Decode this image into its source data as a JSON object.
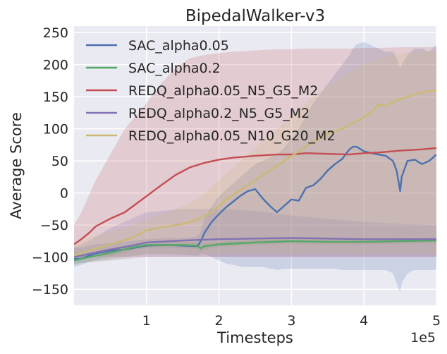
{
  "chart_data": {
    "type": "line",
    "title": "BipedalWalker-v3",
    "xlabel": "Timesteps",
    "ylabel": "Average Score",
    "x_scale_label": "1e5",
    "xlim": [
      0,
      5
    ],
    "ylim": [
      -175,
      260
    ],
    "x_ticks": [
      1,
      2,
      3,
      4,
      5
    ],
    "x_tick_labels": [
      "1",
      "2",
      "3",
      "4",
      "5"
    ],
    "y_ticks": [
      -150,
      -100,
      -50,
      0,
      50,
      100,
      150,
      200,
      250
    ],
    "y_tick_labels": [
      "−150",
      "−100",
      "−50",
      "0",
      "50",
      "100",
      "150",
      "200",
      "250"
    ],
    "grid": true,
    "legend_position": "top-left",
    "series": [
      {
        "name": "SAC_alpha0.05",
        "color": "#4c72b0",
        "x": [
          0,
          0.1,
          0.2,
          0.3,
          0.5,
          0.7,
          1.0,
          1.3,
          1.5,
          1.7,
          1.75,
          1.8,
          1.9,
          2.0,
          2.1,
          2.2,
          2.3,
          2.4,
          2.5,
          2.6,
          2.7,
          2.75,
          2.8,
          2.9,
          3.0,
          3.1,
          3.2,
          3.3,
          3.4,
          3.5,
          3.6,
          3.7,
          3.8,
          3.85,
          3.9,
          4.0,
          4.1,
          4.2,
          4.3,
          4.4,
          4.45,
          4.5,
          4.52,
          4.6,
          4.7,
          4.8,
          4.9,
          5.0
        ],
        "y": [
          -103,
          -102,
          -98,
          -94,
          -90,
          -88,
          -82,
          -81,
          -82,
          -83,
          -75,
          -62,
          -45,
          -33,
          -22,
          -13,
          -4,
          3,
          6,
          -8,
          -20,
          -25,
          -30,
          -20,
          -10,
          -12,
          8,
          12,
          22,
          35,
          45,
          53,
          68,
          72,
          72,
          65,
          62,
          60,
          58,
          50,
          35,
          3,
          25,
          50,
          52,
          45,
          50,
          60
        ],
        "upper": [
          -85,
          -85,
          -82,
          -80,
          -78,
          -76,
          -72,
          -70,
          -70,
          -68,
          -60,
          -40,
          -20,
          -5,
          5,
          15,
          25,
          35,
          45,
          50,
          55,
          58,
          60,
          70,
          85,
          100,
          120,
          140,
          155,
          170,
          185,
          200,
          215,
          225,
          232,
          235,
          230,
          225,
          220,
          220,
          210,
          195,
          200,
          215,
          225,
          225,
          220,
          230
        ],
        "lower": [
          -115,
          -112,
          -108,
          -105,
          -102,
          -100,
          -95,
          -95,
          -96,
          -98,
          -95,
          -95,
          -100,
          -105,
          -110,
          -112,
          -115,
          -115,
          -115,
          -115,
          -118,
          -118,
          -120,
          -118,
          -118,
          -118,
          -118,
          -118,
          -118,
          -118,
          -118,
          -120,
          -120,
          -120,
          -120,
          -120,
          -120,
          -120,
          -120,
          -125,
          -140,
          -155,
          -140,
          -125,
          -120,
          -120,
          -120,
          -120
        ]
      },
      {
        "name": "SAC_alpha0.2",
        "color": "#55a868",
        "x": [
          0,
          0.2,
          0.5,
          0.8,
          1.0,
          1.5,
          1.7,
          1.75,
          1.8,
          2.0,
          2.5,
          3.0,
          3.5,
          4.0,
          4.5,
          5.0
        ],
        "y": [
          -105,
          -100,
          -93,
          -85,
          -81,
          -81,
          -82,
          -86,
          -83,
          -80,
          -77,
          -75,
          -76,
          -76,
          -75,
          -74
        ],
        "upper": [
          -98,
          -94,
          -87,
          -80,
          -77,
          -76,
          -77,
          -80,
          -78,
          -76,
          -73,
          -71,
          -72,
          -72,
          -71,
          -70
        ],
        "lower": [
          -112,
          -106,
          -99,
          -90,
          -85,
          -86,
          -87,
          -92,
          -88,
          -84,
          -81,
          -79,
          -80,
          -80,
          -79,
          -78
        ]
      },
      {
        "name": "REDQ_alpha0.05_N5_G5_M2",
        "color": "#c44e52",
        "x": [
          0,
          0.1,
          0.2,
          0.3,
          0.5,
          0.7,
          1.0,
          1.2,
          1.4,
          1.6,
          1.8,
          2.0,
          2.2,
          2.5,
          2.8,
          3.0,
          3.2,
          3.5,
          3.8,
          4.0,
          4.2,
          4.5,
          4.8,
          5.0
        ],
        "y": [
          -80,
          -72,
          -63,
          -52,
          -40,
          -30,
          -5,
          12,
          28,
          40,
          47,
          52,
          55,
          58,
          60,
          60,
          62,
          61,
          60,
          62,
          63,
          66,
          68,
          70
        ],
        "upper": [
          -50,
          -30,
          -5,
          20,
          60,
          100,
          140,
          170,
          195,
          210,
          215,
          218,
          220,
          222,
          224,
          224,
          225,
          225,
          225,
          226,
          226,
          227,
          227,
          228
        ],
        "lower": [
          -100,
          -100,
          -100,
          -100,
          -100,
          -100,
          -100,
          -100,
          -100,
          -100,
          -100,
          -100,
          -100,
          -100,
          -100,
          -100,
          -100,
          -100,
          -100,
          -100,
          -100,
          -100,
          -100,
          -100
        ]
      },
      {
        "name": "REDQ_alpha0.2_N5_G5_M2",
        "color": "#8172b2",
        "x": [
          0,
          0.2,
          0.5,
          0.8,
          1.0,
          1.5,
          2.0,
          2.5,
          3.0,
          3.5,
          4.0,
          4.5,
          5.0
        ],
        "y": [
          -100,
          -95,
          -88,
          -82,
          -77,
          -74,
          -72,
          -71,
          -70,
          -71,
          -72,
          -72,
          -72
        ],
        "upper": [
          -85,
          -75,
          -55,
          -40,
          -30,
          -25,
          -25,
          -28,
          -35,
          -40,
          -45,
          -48,
          -50
        ],
        "lower": [
          -110,
          -108,
          -105,
          -102,
          -100,
          -100,
          -100,
          -100,
          -100,
          -100,
          -100,
          -100,
          -100
        ]
      },
      {
        "name": "REDQ_alpha0.05_N10_G20_M2",
        "color": "#ccb974",
        "x": [
          0,
          0.2,
          0.5,
          0.8,
          1.0,
          1.3,
          1.5,
          1.7,
          1.9,
          2.1,
          2.3,
          2.5,
          2.7,
          2.9,
          3.1,
          3.3,
          3.5,
          3.7,
          3.9,
          4.1,
          4.2,
          4.3,
          4.4,
          4.6,
          4.8,
          5.0
        ],
        "y": [
          -97,
          -90,
          -80,
          -70,
          -58,
          -52,
          -48,
          -42,
          -30,
          -10,
          5,
          20,
          35,
          50,
          65,
          80,
          92,
          100,
          112,
          125,
          138,
          135,
          142,
          150,
          157,
          160
        ],
        "upper": [
          -80,
          -70,
          -60,
          -50,
          -40,
          -30,
          -20,
          -10,
          10,
          30,
          50,
          70,
          90,
          110,
          130,
          150,
          165,
          180,
          195,
          205,
          210,
          212,
          215,
          218,
          220,
          222
        ],
        "lower": [
          -110,
          -108,
          -105,
          -100,
          -95,
          -95,
          -95,
          -95,
          -95,
          -95,
          -95,
          -95,
          -95,
          -95,
          -95,
          -95,
          -95,
          -95,
          -95,
          -95,
          -95,
          -95,
          -95,
          -95,
          -95,
          -95
        ]
      }
    ]
  }
}
